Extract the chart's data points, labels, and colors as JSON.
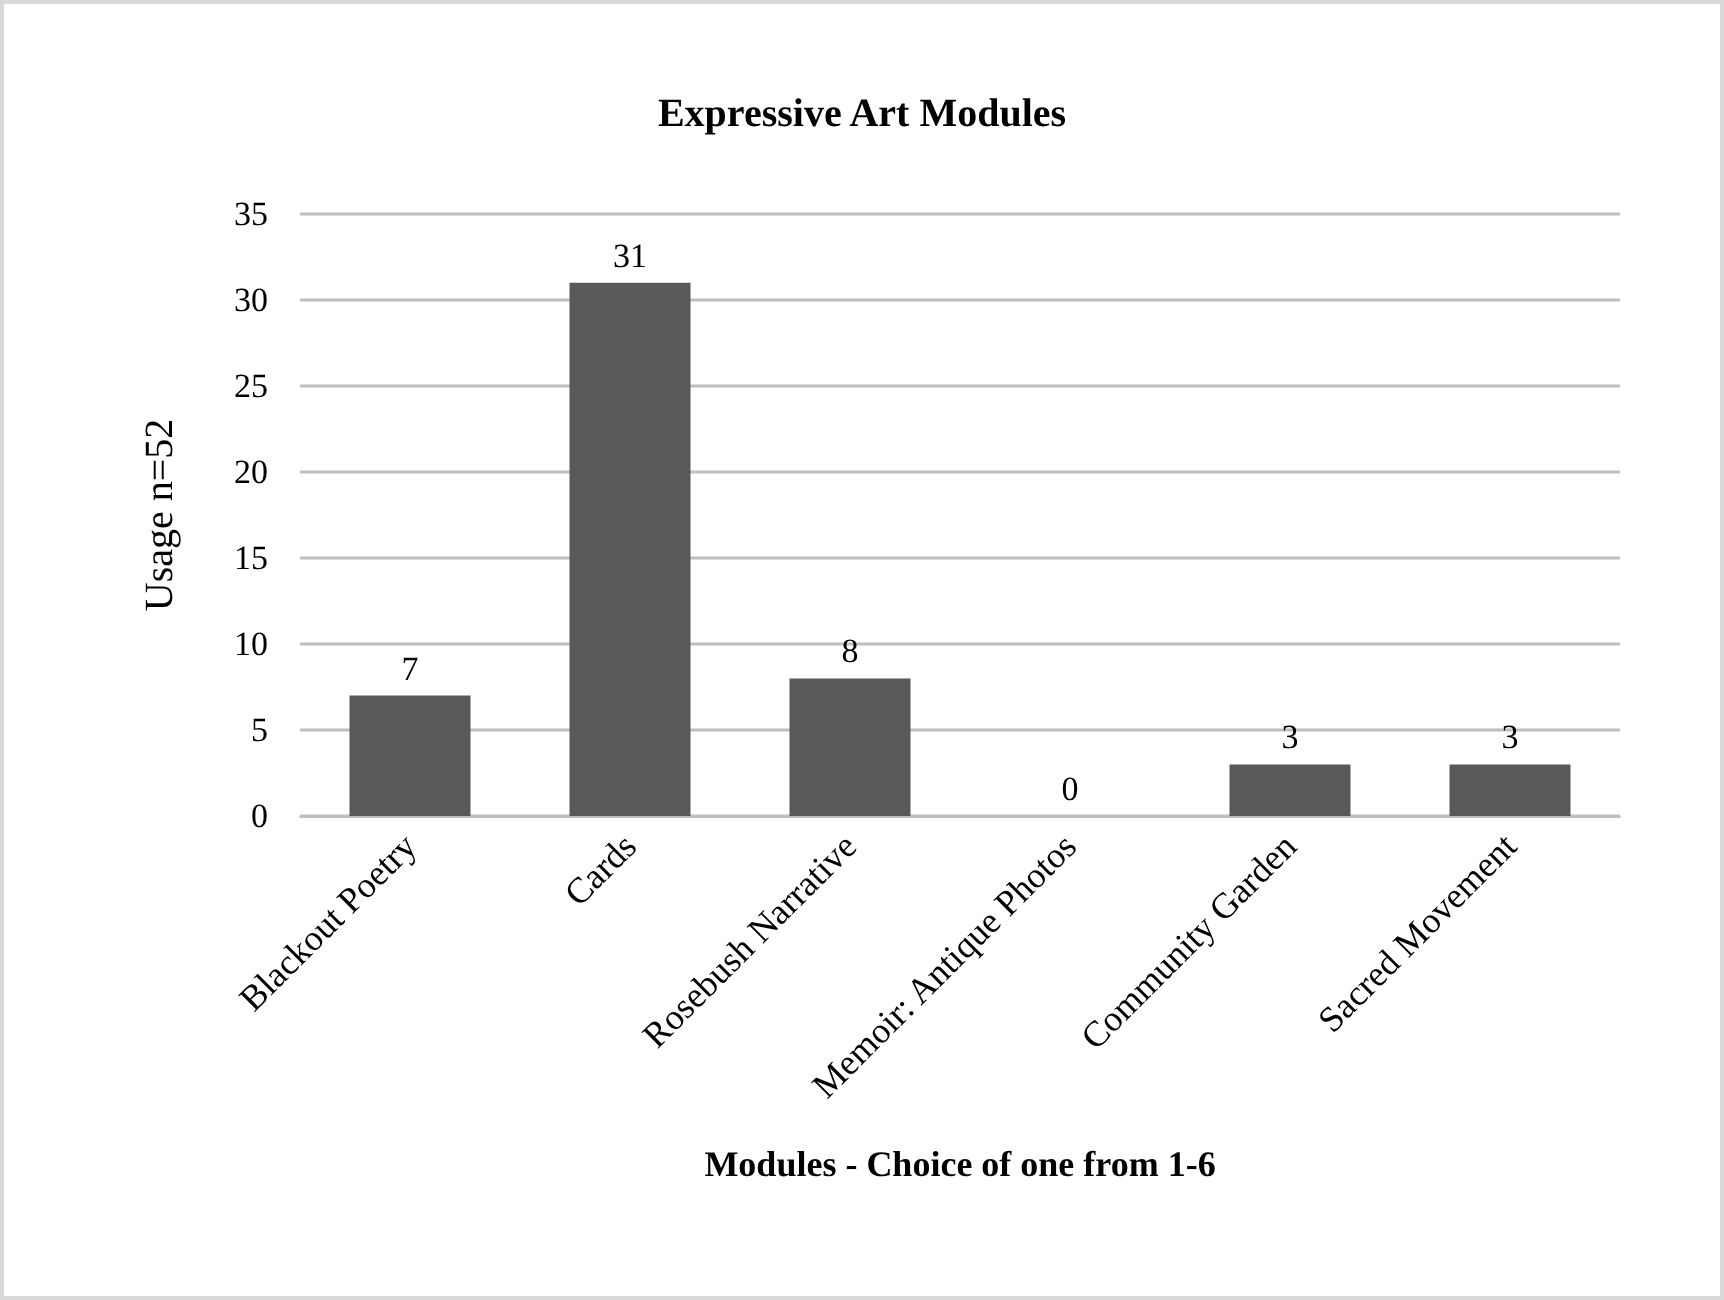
{
  "chart_data": {
    "type": "bar",
    "title": "Expressive Art Modules",
    "xlabel": "Modules - Choice of one from 1-6",
    "ylabel": "Usage n=52",
    "categories": [
      "Blackout Poetry",
      "Cards",
      "Rosebush Narrative",
      "Memoir: Antique Photos",
      "Community Garden",
      "Sacred Movement"
    ],
    "values": [
      7,
      31,
      8,
      0,
      3,
      3
    ],
    "color": "#595959",
    "ylim": [
      0,
      35
    ],
    "yticks": [
      0,
      5,
      10,
      15,
      20,
      25,
      30,
      35
    ],
    "grid": "y",
    "data_labels": true
  }
}
